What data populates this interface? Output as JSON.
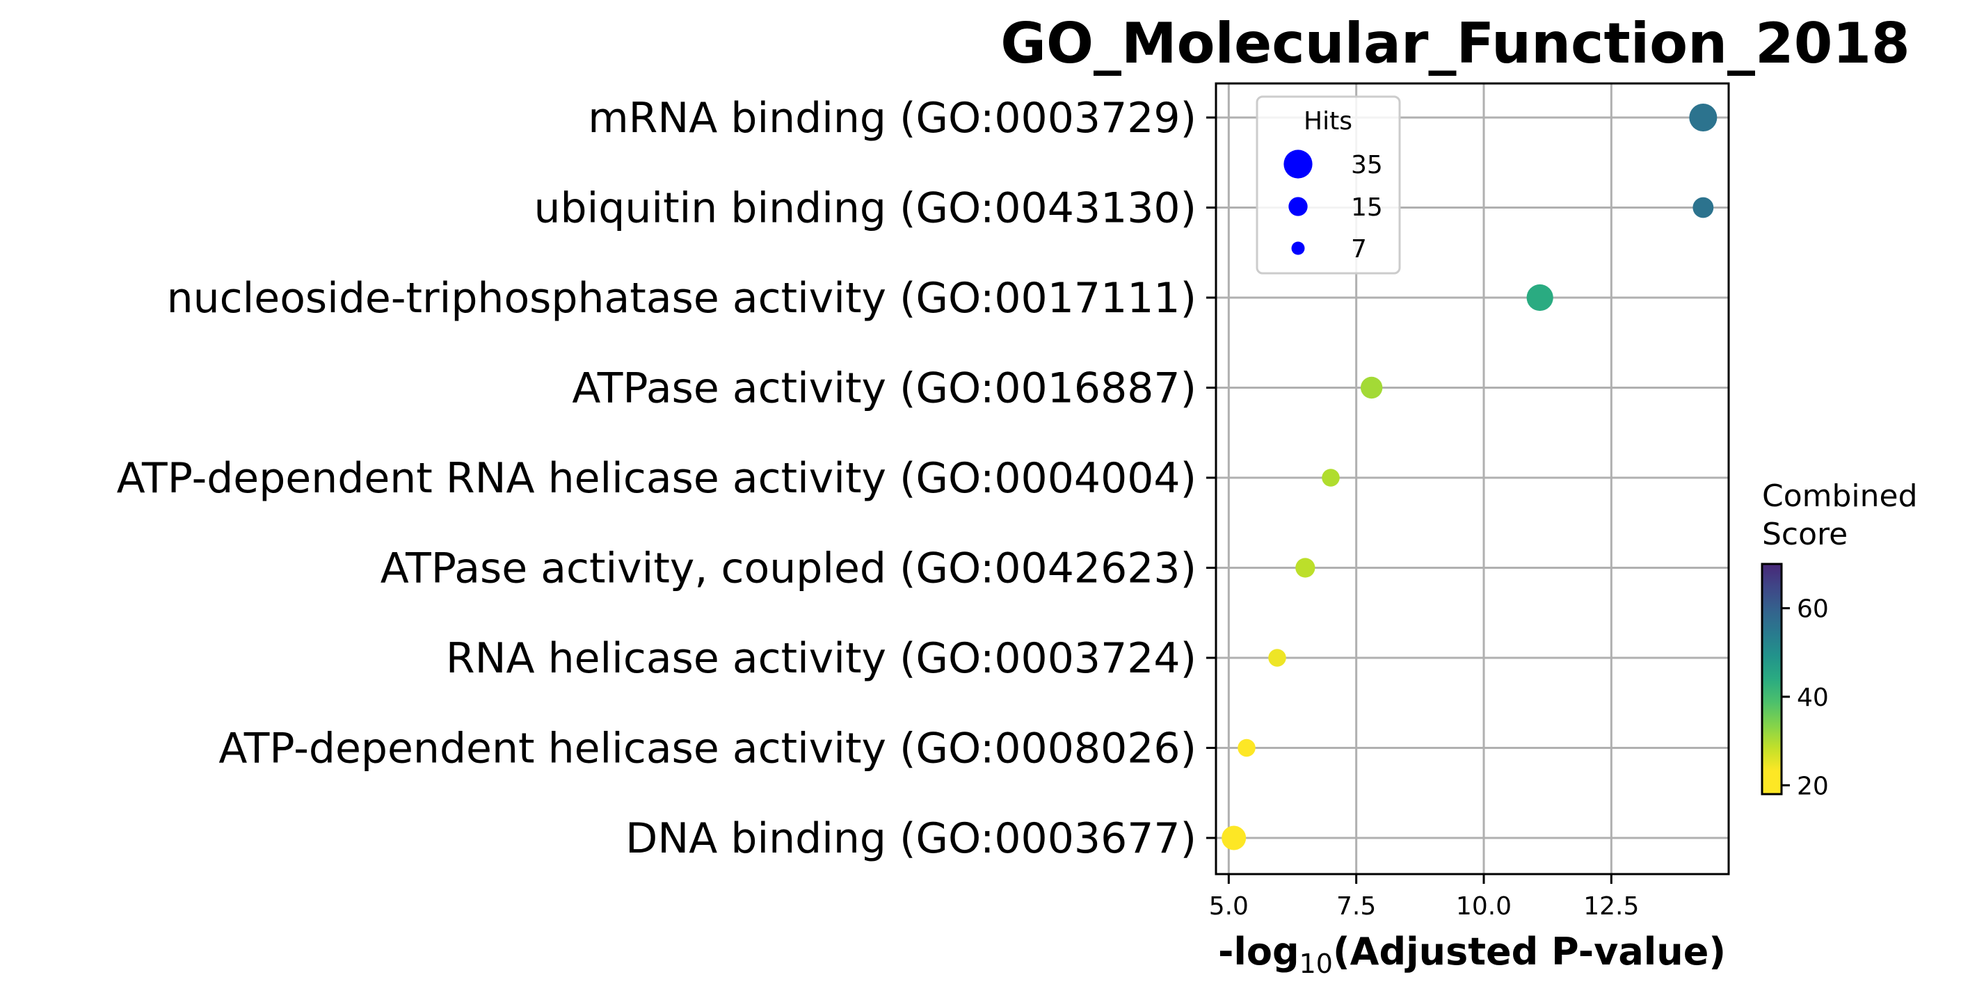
{
  "chart_data": {
    "type": "scatter",
    "title": "GO_Molecular_Function_2018",
    "xlabel": {
      "prefix": "-log",
      "subscript": "10",
      "suffix": "(Adjusted P-value)"
    },
    "xlim": [
      4.75,
      14.8
    ],
    "xticks": [
      5.0,
      7.5,
      10.0,
      12.5
    ],
    "xtick_labels": [
      "5.0",
      "7.5",
      "10.0",
      "12.5"
    ],
    "grid": true,
    "categories": [
      "mRNA binding (GO:0003729)",
      "ubiquitin binding (GO:0043130)",
      "nucleoside-triphosphatase activity (GO:0017111)",
      "ATPase activity (GO:0016887)",
      "ATP-dependent RNA helicase activity (GO:0004004)",
      "ATPase activity, coupled (GO:0042623)",
      "RNA helicase activity (GO:0003724)",
      "ATP-dependent helicase activity (GO:0008026)",
      "DNA binding (GO:0003677)"
    ],
    "points": [
      {
        "category": "mRNA binding (GO:0003729)",
        "x": 14.3,
        "hits": 33,
        "combined_score": 56
      },
      {
        "category": "ubiquitin binding (GO:0043130)",
        "x": 14.3,
        "hits": 18,
        "combined_score": 56
      },
      {
        "category": "nucleoside-triphosphatase activity (GO:0017111)",
        "x": 11.1,
        "hits": 30,
        "combined_score": 44
      },
      {
        "category": "ATPase activity (GO:0016887)",
        "x": 7.8,
        "hits": 20,
        "combined_score": 31
      },
      {
        "category": "ATP-dependent RNA helicase activity (GO:0004004)",
        "x": 7.0,
        "hits": 13,
        "combined_score": 30
      },
      {
        "category": "ATPase activity, coupled (GO:0042623)",
        "x": 6.5,
        "hits": 16,
        "combined_score": 29
      },
      {
        "category": "RNA helicase activity (GO:0003724)",
        "x": 5.95,
        "hits": 13,
        "combined_score": 25
      },
      {
        "category": "ATP-dependent helicase activity (GO:0008026)",
        "x": 5.35,
        "hits": 13,
        "combined_score": 21
      },
      {
        "category": "DNA binding (GO:0003677)",
        "x": 5.1,
        "hits": 25,
        "combined_score": 18
      }
    ],
    "size_legend": {
      "title": "Hits",
      "placement": "top-left",
      "entries": [
        {
          "label": "35",
          "hits": 35
        },
        {
          "label": "15",
          "hits": 15
        },
        {
          "label": "7",
          "hits": 7
        }
      ],
      "marker_color": "#0000ff"
    },
    "colorbar": {
      "title_lines": [
        "Combined",
        "Score"
      ],
      "colormap": "viridis_r",
      "range": [
        18,
        70
      ],
      "ticks": [
        20,
        40,
        60
      ],
      "tick_labels": [
        "20",
        "40",
        "60"
      ]
    }
  }
}
